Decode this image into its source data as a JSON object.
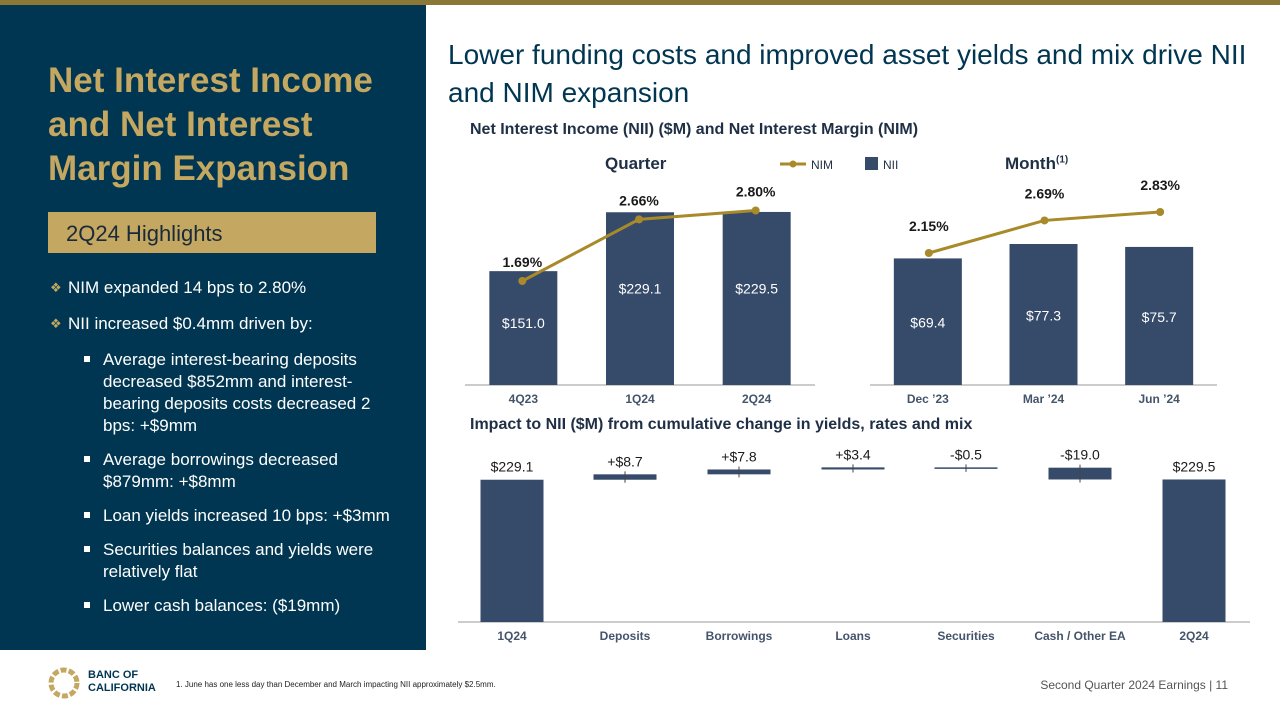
{
  "sidebar": {
    "title": "Net Interest Income and Net Interest Margin Expansion",
    "highlights_label": "2Q24 Highlights",
    "bullets": [
      "NIM expanded 14 bps to 2.80%",
      "NII increased $0.4mm driven by:"
    ],
    "sub_bullets": [
      "Average interest-bearing deposits decreased $852mm and interest-bearing deposits costs decreased 2 bps: +$9mm",
      "Average borrowings decreased $879mm: +$8mm",
      "Loan yields increased 10 bps: +$3mm",
      "Securities balances and yields were relatively flat",
      "Lower cash balances: ($19mm)"
    ]
  },
  "main": {
    "title": "Lower funding costs and improved asset yields and mix drive NII and NIM expansion",
    "top_section_title": "Net Interest Income (NII) ($M) and Net Interest Margin (NIM)",
    "quarter_label": "Quarter",
    "month_label": "Month",
    "month_footnote_mark": "(1)",
    "legend_nim": "NIM",
    "legend_nii": "NII",
    "bottom_section_title": "Impact to NII ($M) from cumulative change in yields, rates and mix"
  },
  "colors": {
    "navy": "#003651",
    "bar": "#364a6a",
    "gold": "#c4a760",
    "line": "#a88a2a",
    "topbar": "#8b7836"
  },
  "chart_data": [
    {
      "id": "quarter",
      "type": "bar",
      "title": "Quarter",
      "categories": [
        "4Q23",
        "1Q24",
        "2Q24"
      ],
      "series": [
        {
          "name": "NII",
          "values": [
            151.0,
            229.1,
            229.5
          ],
          "labels": [
            "$151.0",
            "$229.1",
            "$229.5"
          ]
        },
        {
          "name": "NIM",
          "values": [
            1.69,
            2.66,
            2.8
          ],
          "labels": [
            "1.69%",
            "2.66%",
            "2.80%"
          ]
        }
      ],
      "ylim": [
        0,
        260
      ]
    },
    {
      "id": "month",
      "type": "bar",
      "title": "Month",
      "categories": [
        "Dec ’23",
        "Mar ’24",
        "Jun ’24"
      ],
      "series": [
        {
          "name": "NII",
          "values": [
            69.4,
            77.3,
            75.7
          ],
          "labels": [
            "$69.4",
            "$77.3",
            "$75.7"
          ]
        },
        {
          "name": "NIM",
          "values": [
            2.15,
            2.69,
            2.83
          ],
          "labels": [
            "2.15%",
            "2.69%",
            "2.83%"
          ]
        }
      ],
      "ylim": [
        0,
        100
      ]
    },
    {
      "id": "waterfall",
      "type": "bar",
      "title": "Impact to NII ($M) from cumulative change in yields, rates and mix",
      "categories": [
        "1Q24",
        "Deposits",
        "Borrowings",
        "Loans",
        "Securities",
        "Cash / Other EA",
        "2Q24"
      ],
      "values": [
        229.1,
        8.7,
        7.8,
        3.4,
        -0.5,
        -19.0,
        229.5
      ],
      "labels": [
        "$229.1",
        "+$8.7",
        "+$7.8",
        "+$3.4",
        "-$0.5",
        "-$19.0",
        "$229.5"
      ],
      "kinds": [
        "total",
        "delta",
        "delta",
        "delta",
        "delta",
        "delta",
        "total"
      ]
    }
  ],
  "footer": {
    "note": "1.  June has one less day than December and March impacting NII approximately $2.5mm.",
    "right": "Second Quarter 2024 Earnings |  11",
    "logo_line1": "BANC OF",
    "logo_line2": "CALIFORNIA"
  }
}
